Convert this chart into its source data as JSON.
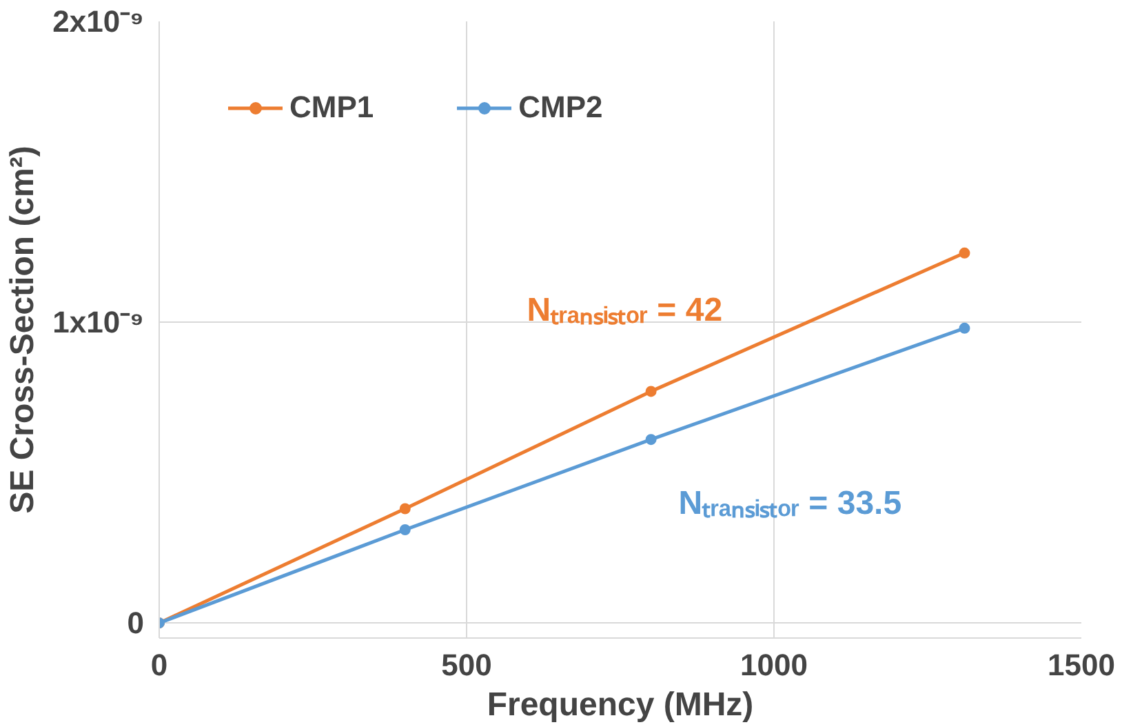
{
  "chart_data": {
    "type": "line",
    "xlabel": "Frequency (MHz)",
    "ylabel": "SE Cross-Section (cm²)",
    "x": [
      0,
      400,
      800,
      1310
    ],
    "series": [
      {
        "name": "CMP1",
        "color": "#ed7d31",
        "values": [
          0,
          3.8e-10,
          7.7e-10,
          1.23e-09
        ]
      },
      {
        "name": "CMP2",
        "color": "#5b9bd5",
        "values": [
          0,
          3.1e-10,
          6.1e-10,
          9.8e-10
        ]
      }
    ],
    "xlim": [
      0,
      1500
    ],
    "xticks": [
      0,
      500,
      1000,
      1500
    ],
    "ylim": [
      -5e-11,
      2e-09
    ],
    "yticks": [
      0,
      {
        "value": 1e-09,
        "label": "1x10⁻⁹"
      },
      {
        "value": 2e-09,
        "label": "2x10⁻⁹"
      }
    ],
    "annotations": [
      "Nₜᵣₐₙₛᵢₛₜₒᵣ = 42",
      "Nₜᵣₐₙₛᵢₛₜₒᵣ = 33.5"
    ],
    "grid": true,
    "legend": "top left",
    "marker": "circle",
    "line_style": "solid"
  }
}
